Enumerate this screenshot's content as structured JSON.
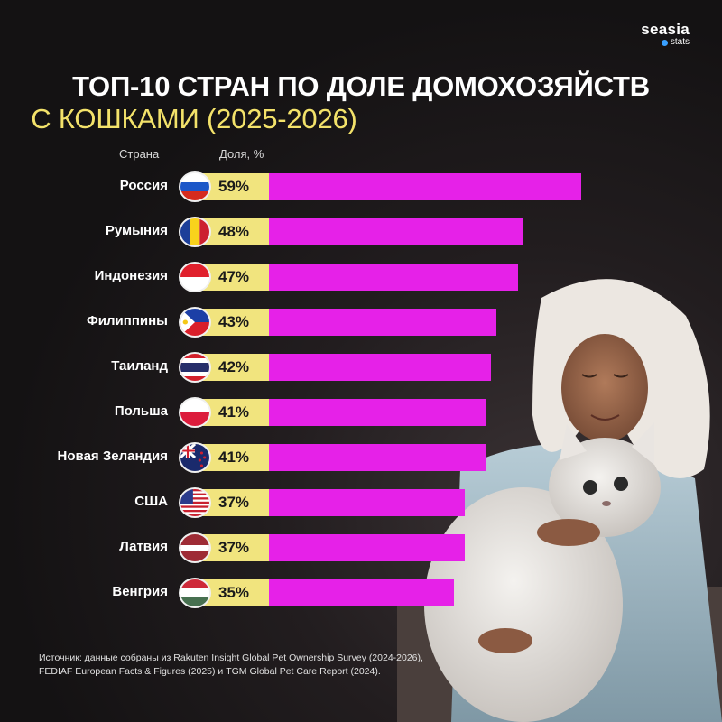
{
  "brand": {
    "name": "seasia",
    "sub": "stats"
  },
  "title_line1": "ТОП-10 СТРАН ПО ДОЛЕ ДОМОХОЗЯЙСТВ",
  "title_line2": "С КОШКАМИ (2025-2026)",
  "column_headers": {
    "country": "Страна",
    "share": "Доля, %"
  },
  "source_text": "Источник: данные собраны из Rakuten Insight Global Pet Ownership Survey (2024-2026), FEDIAF European Facts & Figures (2025) и TGM Global Pet Care Report (2024).",
  "colors": {
    "bar": "#e621e8",
    "value_box": "#f1e47e",
    "title_accent": "#f3e26a",
    "background": "#141213"
  },
  "chart_data": {
    "type": "bar",
    "orientation": "horizontal",
    "categories": [
      "Россия",
      "Румыния",
      "Индонезия",
      "Филиппины",
      "Таиланд",
      "Польша",
      "Новая Зеландия",
      "США",
      "Латвия",
      "Венгрия"
    ],
    "values": [
      59,
      48,
      47,
      43,
      42,
      41,
      41,
      37,
      37,
      35
    ],
    "value_labels": [
      "59%",
      "48%",
      "47%",
      "43%",
      "42%",
      "41%",
      "41%",
      "37%",
      "37%",
      "35%"
    ],
    "flags": [
      "russia-flag-icon",
      "romania-flag-icon",
      "indonesia-flag-icon",
      "philippines-flag-icon",
      "thailand-flag-icon",
      "poland-flag-icon",
      "new-zealand-flag-icon",
      "usa-flag-icon",
      "latvia-flag-icon",
      "hungary-flag-icon"
    ],
    "grid": false
  }
}
